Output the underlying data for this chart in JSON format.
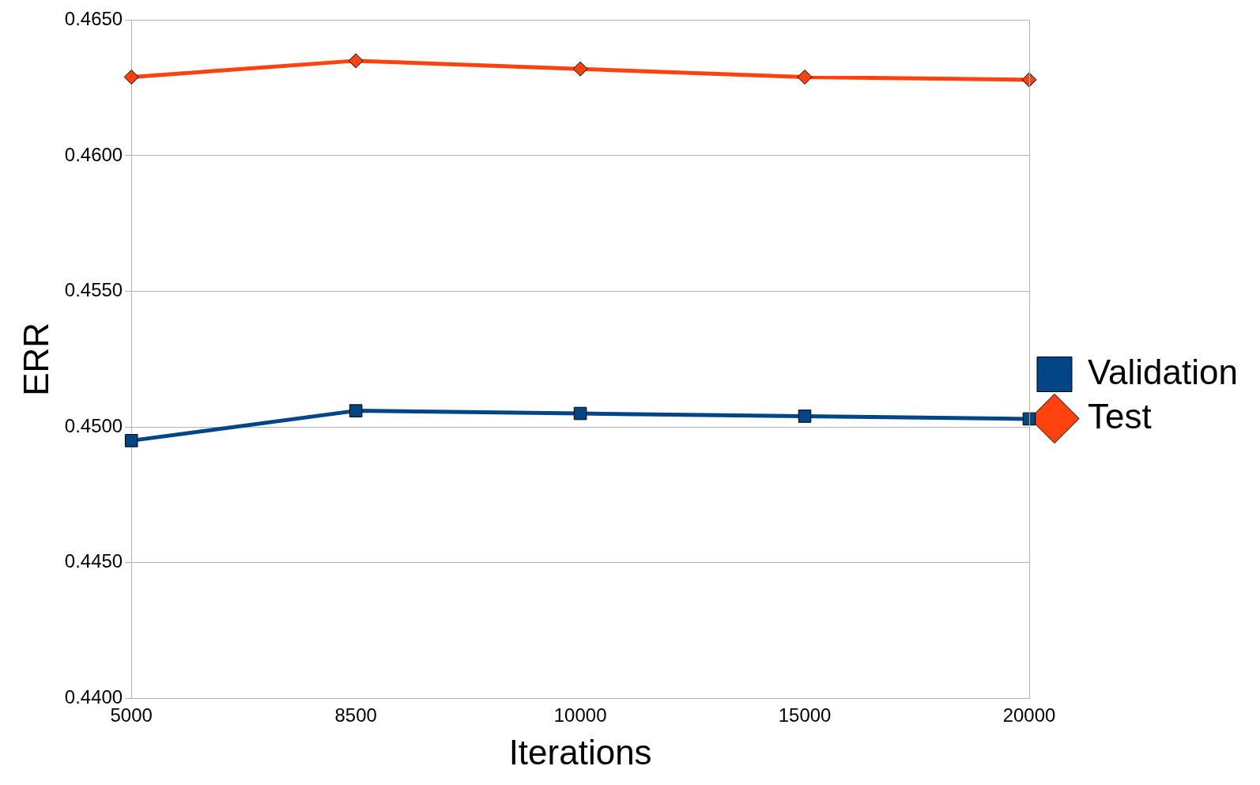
{
  "chart_data": {
    "type": "line",
    "xlabel": "Iterations",
    "ylabel": "ERR",
    "categories": [
      "5000",
      "8500",
      "10000",
      "15000",
      "20000"
    ],
    "series": [
      {
        "name": "Validation",
        "color": "#004586",
        "marker": "square",
        "values": [
          0.4495,
          0.4506,
          0.4505,
          0.4504,
          0.4503
        ]
      },
      {
        "name": "Test",
        "color": "#ff420e",
        "marker": "diamond",
        "values": [
          0.4629,
          0.4635,
          0.4632,
          0.4629,
          0.4628
        ]
      }
    ],
    "ylim": [
      0.44,
      0.465
    ],
    "yticks": [
      {
        "value": 0.44,
        "label": "0.4400"
      },
      {
        "value": 0.445,
        "label": "0.4450"
      },
      {
        "value": 0.45,
        "label": "0.4500"
      },
      {
        "value": 0.455,
        "label": "0.4550"
      },
      {
        "value": 0.46,
        "label": "0.4600"
      },
      {
        "value": 0.465,
        "label": "0.4650"
      }
    ],
    "grid": "y",
    "legend": "right",
    "line_style": "solid"
  }
}
